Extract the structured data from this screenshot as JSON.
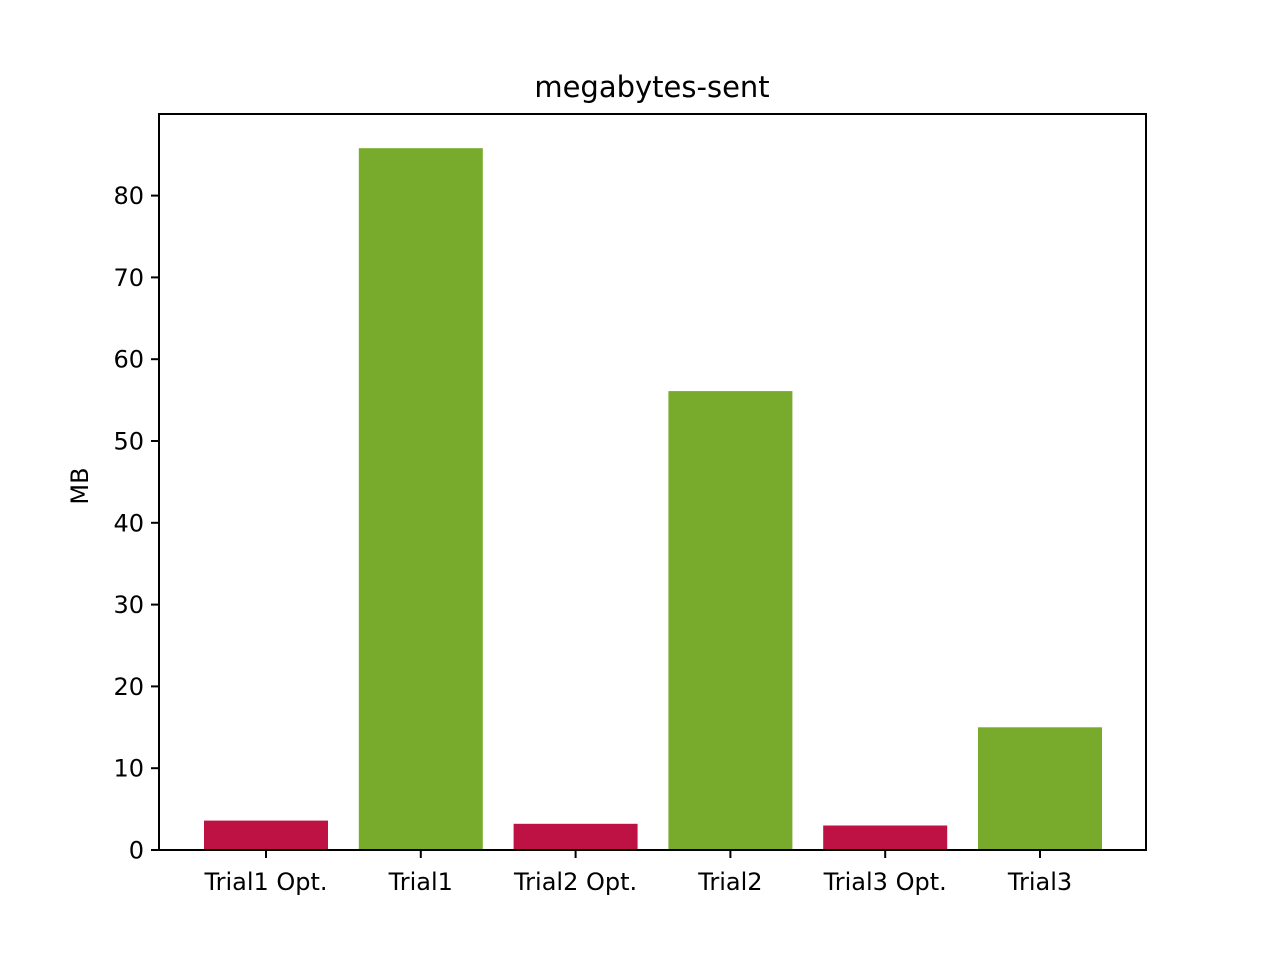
{
  "chart_data": {
    "type": "bar",
    "title": "megabytes-sent",
    "xlabel": "",
    "ylabel": "MB",
    "categories": [
      "Trial1 Opt.",
      "Trial1",
      "Trial2 Opt.",
      "Trial2",
      "Trial3 Opt.",
      "Trial3"
    ],
    "values": [
      3.6,
      85.8,
      3.2,
      56.1,
      3.0,
      15.0
    ],
    "bar_colors": [
      "#be1144",
      "#78aa2b",
      "#be1144",
      "#78aa2b",
      "#be1144",
      "#78aa2b"
    ],
    "ylim": [
      0,
      90
    ],
    "yticks": [
      0,
      10,
      20,
      30,
      40,
      50,
      60,
      70,
      80
    ],
    "grid": false,
    "legend": "none"
  }
}
